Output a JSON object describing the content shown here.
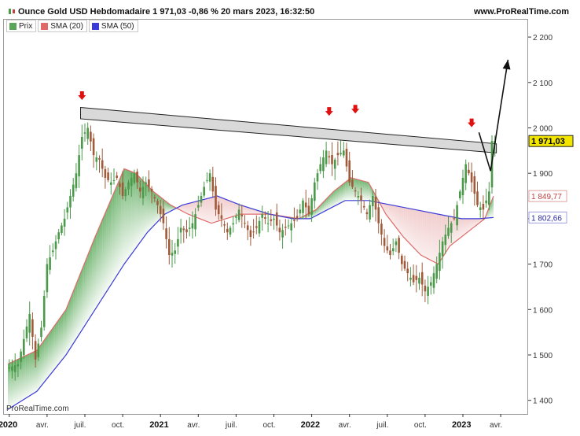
{
  "header": {
    "title": "Ounce Gold USD Hebdomadaire 1 971,03 -0,86 % 20 mars 2023, 16:32:50",
    "site": "www.ProRealTime.com",
    "watermark": "ProRealTime.com"
  },
  "legend": [
    {
      "label": "Prix",
      "color": "#5aa55a"
    },
    {
      "label": "SMA (20)",
      "color": "#e06a6a"
    },
    {
      "label": "SMA (50)",
      "color": "#3b3bd8"
    }
  ],
  "chart_data": {
    "type": "line",
    "title": "Ounce Gold USD Hebdomadaire",
    "price_type": "candlestick",
    "timeframe": "Hebdomadaire",
    "x_ticks": [
      {
        "label": "2020",
        "bold": true,
        "w": 0
      },
      {
        "label": "avr.",
        "bold": false,
        "w": 13
      },
      {
        "label": "juil.",
        "bold": false,
        "w": 26
      },
      {
        "label": "oct.",
        "bold": false,
        "w": 39
      },
      {
        "label": "2021",
        "bold": true,
        "w": 52
      },
      {
        "label": "avr.",
        "bold": false,
        "w": 65
      },
      {
        "label": "juil.",
        "bold": false,
        "w": 78
      },
      {
        "label": "oct.",
        "bold": false,
        "w": 91
      },
      {
        "label": "2022",
        "bold": true,
        "w": 104
      },
      {
        "label": "avr.",
        "bold": false,
        "w": 117
      },
      {
        "label": "juil.",
        "bold": false,
        "w": 130
      },
      {
        "label": "oct.",
        "bold": false,
        "w": 143
      },
      {
        "label": "2023",
        "bold": true,
        "w": 156
      },
      {
        "label": "avr.",
        "bold": false,
        "w": 169
      }
    ],
    "y_ticks": [
      "1 400",
      "1 500",
      "1 600",
      "1 700",
      "1 800",
      "1 900",
      "2 000",
      "2 100",
      "2 200"
    ],
    "y_tick_values": [
      1400,
      1500,
      1600,
      1700,
      1800,
      1900,
      2000,
      2100,
      2200
    ],
    "ylim": [
      1370,
      2240
    ],
    "price_points": [
      [
        0,
        1470
      ],
      [
        4,
        1480
      ],
      [
        8,
        1590
      ],
      [
        10,
        1490
      ],
      [
        12,
        1560
      ],
      [
        14,
        1700
      ],
      [
        16,
        1730
      ],
      [
        18,
        1770
      ],
      [
        20,
        1800
      ],
      [
        22,
        1850
      ],
      [
        24,
        1900
      ],
      [
        26,
        1980
      ],
      [
        28,
        2000
      ],
      [
        30,
        1940
      ],
      [
        32,
        1930
      ],
      [
        34,
        1890
      ],
      [
        36,
        1880
      ],
      [
        38,
        1890
      ],
      [
        40,
        1850
      ],
      [
        42,
        1880
      ],
      [
        44,
        1900
      ],
      [
        46,
        1860
      ],
      [
        48,
        1880
      ],
      [
        50,
        1860
      ],
      [
        52,
        1830
      ],
      [
        54,
        1790
      ],
      [
        56,
        1720
      ],
      [
        58,
        1730
      ],
      [
        60,
        1780
      ],
      [
        62,
        1770
      ],
      [
        64,
        1790
      ],
      [
        66,
        1830
      ],
      [
        68,
        1870
      ],
      [
        70,
        1900
      ],
      [
        72,
        1820
      ],
      [
        74,
        1800
      ],
      [
        76,
        1770
      ],
      [
        78,
        1790
      ],
      [
        80,
        1820
      ],
      [
        82,
        1790
      ],
      [
        84,
        1760
      ],
      [
        86,
        1780
      ],
      [
        88,
        1810
      ],
      [
        90,
        1790
      ],
      [
        92,
        1800
      ],
      [
        94,
        1770
      ],
      [
        96,
        1780
      ],
      [
        98,
        1790
      ],
      [
        100,
        1800
      ],
      [
        102,
        1840
      ],
      [
        104,
        1810
      ],
      [
        106,
        1880
      ],
      [
        108,
        1920
      ],
      [
        110,
        1950
      ],
      [
        112,
        1920
      ],
      [
        114,
        1940
      ],
      [
        116,
        1950
      ],
      [
        118,
        1880
      ],
      [
        120,
        1860
      ],
      [
        122,
        1840
      ],
      [
        124,
        1810
      ],
      [
        126,
        1850
      ],
      [
        128,
        1790
      ],
      [
        130,
        1740
      ],
      [
        132,
        1720
      ],
      [
        134,
        1750
      ],
      [
        136,
        1700
      ],
      [
        138,
        1680
      ],
      [
        140,
        1660
      ],
      [
        142,
        1670
      ],
      [
        144,
        1640
      ],
      [
        146,
        1660
      ],
      [
        148,
        1700
      ],
      [
        150,
        1750
      ],
      [
        152,
        1780
      ],
      [
        154,
        1800
      ],
      [
        156,
        1860
      ],
      [
        158,
        1920
      ],
      [
        160,
        1880
      ],
      [
        162,
        1830
      ],
      [
        164,
        1820
      ],
      [
        166,
        1860
      ],
      [
        167,
        1971.03
      ]
    ],
    "series": [
      {
        "name": "SMA (20)",
        "color": "#e06a6a",
        "points": [
          [
            0,
            1480
          ],
          [
            10,
            1510
          ],
          [
            20,
            1600
          ],
          [
            30,
            1760
          ],
          [
            36,
            1850
          ],
          [
            40,
            1910
          ],
          [
            44,
            1900
          ],
          [
            50,
            1860
          ],
          [
            56,
            1830
          ],
          [
            62,
            1810
          ],
          [
            70,
            1790
          ],
          [
            80,
            1810
          ],
          [
            90,
            1810
          ],
          [
            100,
            1800
          ],
          [
            106,
            1820
          ],
          [
            112,
            1860
          ],
          [
            118,
            1890
          ],
          [
            124,
            1880
          ],
          [
            130,
            1810
          ],
          [
            136,
            1760
          ],
          [
            142,
            1720
          ],
          [
            148,
            1700
          ],
          [
            152,
            1740
          ],
          [
            156,
            1760
          ],
          [
            160,
            1780
          ],
          [
            164,
            1800
          ],
          [
            167,
            1849.77
          ]
        ]
      },
      {
        "name": "SMA (50)",
        "color": "#3b3bd8",
        "points": [
          [
            0,
            1380
          ],
          [
            10,
            1420
          ],
          [
            20,
            1500
          ],
          [
            30,
            1600
          ],
          [
            40,
            1700
          ],
          [
            48,
            1770
          ],
          [
            54,
            1810
          ],
          [
            60,
            1830
          ],
          [
            66,
            1840
          ],
          [
            72,
            1850
          ],
          [
            80,
            1830
          ],
          [
            90,
            1810
          ],
          [
            98,
            1800
          ],
          [
            104,
            1800
          ],
          [
            110,
            1820
          ],
          [
            116,
            1840
          ],
          [
            124,
            1840
          ],
          [
            132,
            1830
          ],
          [
            140,
            1820
          ],
          [
            148,
            1810
          ],
          [
            156,
            1800
          ],
          [
            162,
            1800
          ],
          [
            167,
            1802.66
          ]
        ]
      }
    ],
    "price_labels": [
      {
        "text": "1 971,03",
        "value": 1971.03,
        "style": "current"
      },
      {
        "text": "1 849,77",
        "value": 1849.77,
        "style": "sma20"
      },
      {
        "text": "1 802,66",
        "value": 1802.66,
        "style": "sma50"
      }
    ],
    "resistance_channel": {
      "start": [
        25,
        2045,
        2020
      ],
      "end": [
        168,
        1965,
        1945
      ]
    },
    "arrows_down": [
      [
        25,
        2065
      ],
      [
        110,
        2030
      ],
      [
        119,
        2035
      ],
      [
        159,
        2005
      ]
    ],
    "projection_line": [
      [
        162,
        1990
      ],
      [
        166,
        1905
      ],
      [
        172,
        2150
      ]
    ],
    "grid": false,
    "legend_position": "top-left"
  },
  "colors": {
    "up": "#4a9a4a",
    "down": "#a05a3a",
    "channel_fill": "#d9d9d9",
    "arrow_red": "#e01010",
    "current_label_bg": "#f2e600"
  }
}
